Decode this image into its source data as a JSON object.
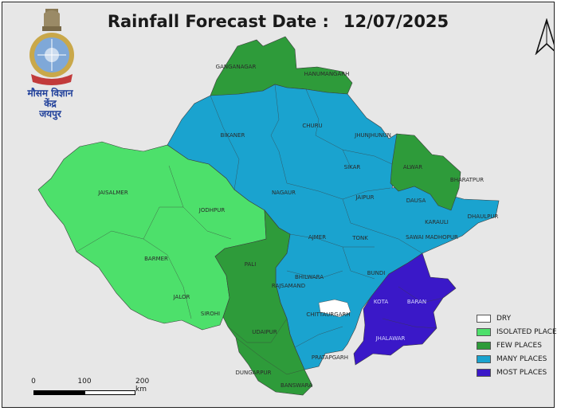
{
  "title": {
    "label": "Rainfall Forecast Date :",
    "date": "12/07/2025"
  },
  "organization": {
    "line1": "मौसम विज्ञान",
    "line2": "केंद्र",
    "line3": "जयपुर"
  },
  "colors": {
    "dry": "#ffffff",
    "isolated": "#4de06b",
    "few": "#2e9b3a",
    "many": "#1aa3cf",
    "most": "#3a18c8",
    "background": "#e7e7e7"
  },
  "legend": [
    {
      "label": "DRY",
      "color": "#ffffff"
    },
    {
      "label": "ISOLATED PLACE",
      "color": "#4de06b"
    },
    {
      "label": "FEW PLACES",
      "color": "#2e9b3a"
    },
    {
      "label": "MANY PLACES",
      "color": "#1aa3cf"
    },
    {
      "label": "MOST PLACES",
      "color": "#3a18c8"
    }
  ],
  "scale_bar": {
    "labels": [
      "0",
      "100",
      "200 km"
    ]
  },
  "districts": {
    "ganganagar": "GANGANAGAR",
    "hanumangarh": "HANUMANGARH",
    "bikaner": "BIKANER",
    "churu": "CHURU",
    "jhunjhunu": "JHUNJHUNUN",
    "sikar": "SIKAR",
    "alwar": "ALWAR",
    "bharatpur": "BHARATPUR",
    "jaisalmer": "JAISALMER",
    "jodhpur": "JODHPUR",
    "nagaur": "NAGAUR",
    "jaipur": "JAIPUR",
    "dausa": "DAUSA",
    "dholpur": "DHAULPUR",
    "karauli": "KARAULI",
    "sawai_madhopur": "SAWAI MADHOPUR",
    "ajmer": "AJMER",
    "tonk": "TONK",
    "barmer": "BARMER",
    "pali": "PALI",
    "rajsamand": "RAJSAMAND",
    "bhilwara": "BHILWARA",
    "bundi": "BUNDI",
    "kota": "KOTA",
    "baran": "BARAN",
    "jalor": "JALOR",
    "sirohi": "SIROHI",
    "udaipur": "UDAIPUR",
    "chittaurgarh": "CHITTAURGARH",
    "jhalawar": "JHALAWAR",
    "pratapgarh": "PRATAPGARH",
    "dungarpur": "DUNGARPUR",
    "banswara": "BANSWARA"
  }
}
